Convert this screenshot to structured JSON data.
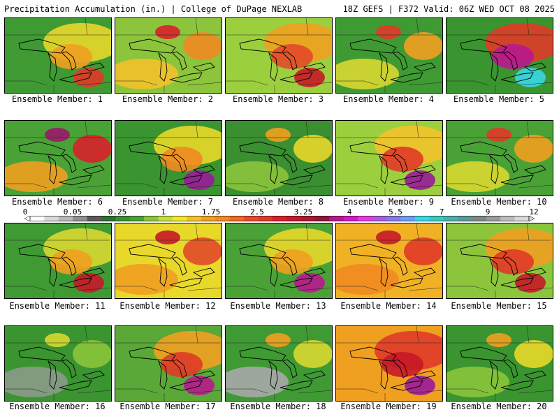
{
  "header": {
    "left": "Precipitation Accumulation (in.) | College of DuPage NEXLAB",
    "right": "18Z GEFS | F372 Valid: 06Z WED OCT 08 2025"
  },
  "panels": [
    {
      "label": "Ensemble Member: 1",
      "base": "#3f9a34",
      "blobs": [
        {
          "c": "#e8d82a"
        },
        {
          "c": "#f0a020"
        },
        {
          "c": "#e03a28"
        }
      ]
    },
    {
      "label": "Ensemble Member: 2",
      "base": "#8cc43c",
      "blobs": [
        {
          "c": "#f2c22a"
        },
        {
          "c": "#f08a22"
        },
        {
          "c": "#d8202a"
        }
      ]
    },
    {
      "label": "Ensemble Member: 3",
      "base": "#9ccf3e",
      "blobs": [
        {
          "c": "#f0a020"
        },
        {
          "c": "#e24a28"
        },
        {
          "c": "#c81828"
        }
      ]
    },
    {
      "label": "Ensemble Member: 4",
      "base": "#3f9a34",
      "blobs": [
        {
          "c": "#d8d830"
        },
        {
          "c": "#f0a020"
        },
        {
          "c": "#e03a28"
        }
      ]
    },
    {
      "label": "Ensemble Member: 5",
      "base": "#3a9430",
      "blobs": [
        {
          "c": "#e03a28"
        },
        {
          "c": "#b8188e"
        },
        {
          "c": "#3ad6e6"
        }
      ]
    },
    {
      "label": "Ensemble Member: 6",
      "base": "#4aa236",
      "blobs": [
        {
          "c": "#f0a020"
        },
        {
          "c": "#d8202a"
        },
        {
          "c": "#9a1a6a"
        }
      ]
    },
    {
      "label": "Ensemble Member: 7",
      "base": "#3a9430",
      "blobs": [
        {
          "c": "#e8d82a"
        },
        {
          "c": "#f08a22"
        },
        {
          "c": "#9a1a9a"
        }
      ]
    },
    {
      "label": "Ensemble Member: 8",
      "base": "#3a8f30",
      "blobs": [
        {
          "c": "#8cc43c"
        },
        {
          "c": "#e8d82a"
        },
        {
          "c": "#f0a020"
        }
      ]
    },
    {
      "label": "Ensemble Member: 9",
      "base": "#9ccf3e",
      "blobs": [
        {
          "c": "#f2c22a"
        },
        {
          "c": "#e03a28"
        },
        {
          "c": "#9a1a9a"
        }
      ]
    },
    {
      "label": "Ensemble Member: 10",
      "base": "#4aa236",
      "blobs": [
        {
          "c": "#d8d830"
        },
        {
          "c": "#f0a020"
        },
        {
          "c": "#e03a28"
        }
      ]
    },
    {
      "label": "Ensemble Member: 11",
      "base": "#3f9a34",
      "blobs": [
        {
          "c": "#d8d830"
        },
        {
          "c": "#f0a020"
        },
        {
          "c": "#c81828"
        }
      ]
    },
    {
      "label": "Ensemble Member: 12",
      "base": "#e8d82a",
      "blobs": [
        {
          "c": "#f0a020"
        },
        {
          "c": "#e24a28"
        },
        {
          "c": "#c81828"
        }
      ]
    },
    {
      "label": "Ensemble Member: 13",
      "base": "#4aa236",
      "blobs": [
        {
          "c": "#e8d82a"
        },
        {
          "c": "#f0a020"
        },
        {
          "c": "#b8188e"
        }
      ]
    },
    {
      "label": "Ensemble Member: 14",
      "base": "#f0b224",
      "blobs": [
        {
          "c": "#f08a22"
        },
        {
          "c": "#e03a28"
        },
        {
          "c": "#c81828"
        }
      ]
    },
    {
      "label": "Ensemble Member: 15",
      "base": "#8cc43c",
      "blobs": [
        {
          "c": "#f0a020"
        },
        {
          "c": "#e03a28"
        },
        {
          "c": "#c81828"
        }
      ]
    },
    {
      "label": "Ensemble Member: 16",
      "base": "#3a9430",
      "blobs": [
        {
          "c": "#8a9a8a"
        },
        {
          "c": "#8cc43c"
        },
        {
          "c": "#d8d830"
        }
      ]
    },
    {
      "label": "Ensemble Member: 17",
      "base": "#5aa838",
      "blobs": [
        {
          "c": "#f0a020"
        },
        {
          "c": "#e03a28"
        },
        {
          "c": "#b8188e"
        }
      ]
    },
    {
      "label": "Ensemble Member: 18",
      "base": "#3f9a34",
      "blobs": [
        {
          "c": "#a8a8a8"
        },
        {
          "c": "#d8d830"
        },
        {
          "c": "#f0a020"
        }
      ]
    },
    {
      "label": "Ensemble Member: 19",
      "base": "#f0a020",
      "blobs": [
        {
          "c": "#e03a28"
        },
        {
          "c": "#c81828"
        },
        {
          "c": "#9a1a9a"
        }
      ]
    },
    {
      "label": "Ensemble Member: 20",
      "base": "#3a9430",
      "blobs": [
        {
          "c": "#8cc43c"
        },
        {
          "c": "#e8d82a"
        },
        {
          "c": "#f0a020"
        }
      ]
    }
  ],
  "legend": {
    "ticks": [
      "0",
      "0.05",
      "0.25",
      "1",
      "1.75",
      "2.5",
      "3.25",
      "4",
      "5.5",
      "7",
      "9",
      "12"
    ],
    "colors": [
      "#ffffff",
      "#d9d9d9",
      "#b8b8b8",
      "#8f8f8f",
      "#5a5a5a",
      "#2f6f2f",
      "#3a8f30",
      "#4aa236",
      "#8cc43c",
      "#c8dc3a",
      "#f0e82a",
      "#f2c22a",
      "#f0a020",
      "#f08a22",
      "#ee6a22",
      "#e84a26",
      "#e03a28",
      "#d8202a",
      "#c81828",
      "#a81830",
      "#8a1838",
      "#b8188e",
      "#d21ac4",
      "#e43ae0",
      "#b05ad8",
      "#8a7ae6",
      "#6aa0f0",
      "#3ad6e6",
      "#3ac8c0",
      "#4ab0a8",
      "#5a9a98",
      "#7a8a88",
      "#9a9a9a",
      "#bcbcbc",
      "#d8d8d8"
    ]
  }
}
